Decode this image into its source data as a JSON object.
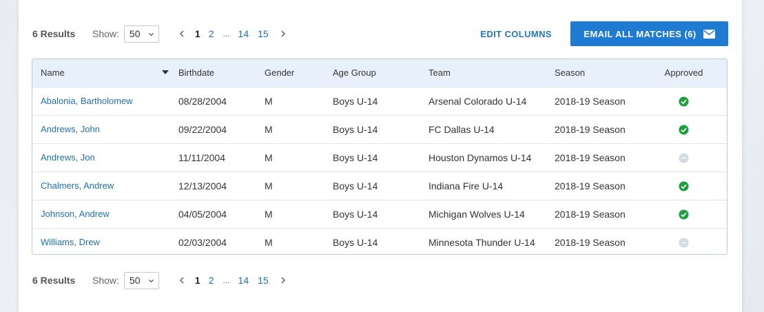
{
  "pagination": {
    "results_label": "6 Results",
    "show_label": "Show:",
    "page_size": "50",
    "current_page": "1",
    "pages": [
      "2",
      "14",
      "15"
    ],
    "ellipsis": "..."
  },
  "actions": {
    "edit_columns": "EDIT COLUMNS",
    "email_all": "EMAIL ALL MATCHES (6)",
    "email_icon": "envelope-icon"
  },
  "table": {
    "headers": {
      "name": "Name",
      "birthdate": "Birthdate",
      "gender": "Gender",
      "age_group": "Age Group",
      "team": "Team",
      "season": "Season",
      "approved": "Approved"
    },
    "rows": [
      {
        "name": "Abalonia, Bartholomew",
        "birthdate": "08/28/2004",
        "gender": "M",
        "age_group": "Boys U-14",
        "team": "Arsenal Colorado U-14",
        "season": "2018-19 Season",
        "approved": true
      },
      {
        "name": "Andrews, John",
        "birthdate": "09/22/2004",
        "gender": "M",
        "age_group": "Boys U-14",
        "team": "FC Dallas U-14",
        "season": "2018-19 Season",
        "approved": true
      },
      {
        "name": "Andrews, Jon",
        "birthdate": "11/11/2004",
        "gender": "M",
        "age_group": "Boys U-14",
        "team": "Houston Dynamos U-14",
        "season": "2018-19 Season",
        "approved": false
      },
      {
        "name": "Chalmers, Andrew",
        "birthdate": "12/13/2004",
        "gender": "M",
        "age_group": "Boys U-14",
        "team": "Indiana Fire U-14",
        "season": "2018-19 Season",
        "approved": true
      },
      {
        "name": "Johnson, Andrew",
        "birthdate": "04/05/2004",
        "gender": "M",
        "age_group": "Boys U-14",
        "team": "Michigan Wolves U-14",
        "season": "2018-19 Season",
        "approved": true
      },
      {
        "name": "Williams, Drew",
        "birthdate": "02/03/2004",
        "gender": "M",
        "age_group": "Boys U-14",
        "team": "Minnesota Thunder U-14",
        "season": "2018-19 Season",
        "approved": false
      }
    ]
  },
  "colors": {
    "accent": "#1f7ad1",
    "link": "#1f6fb7",
    "approved": "#1e9e3e",
    "pending": "#d3dbe6",
    "header_bg": "#e8f1fb"
  }
}
